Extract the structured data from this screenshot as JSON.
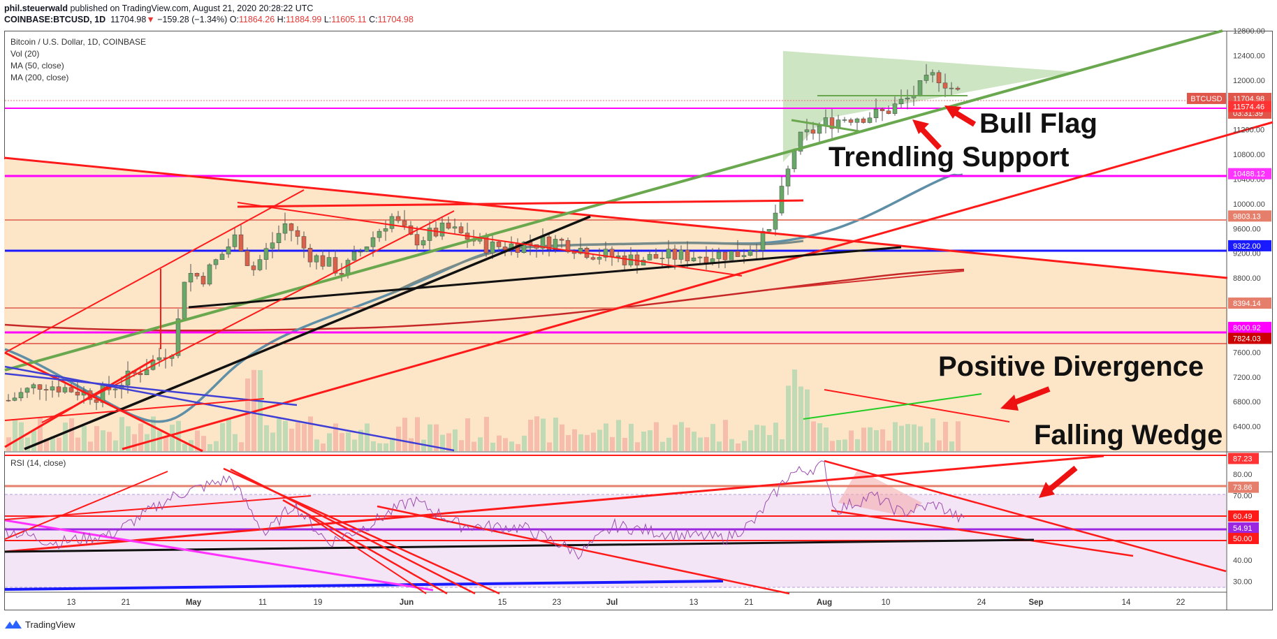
{
  "header": {
    "line1_author": "phil.steuerwald",
    "line1_rest": " published on TradingView.com, August 21, 2020 20:28:22 UTC",
    "symbol": "COINBASE:BTCUSD, 1D",
    "last": "11704.98",
    "arrow": "▼",
    "change": "−159.28 (−1.34%)",
    "o_label": "O:",
    "o": "11864.26",
    "h_label": "H:",
    "h": "11884.99",
    "l_label": "L:",
    "l": "11605.11",
    "c_label": "C:",
    "c": "11704.98"
  },
  "legend": {
    "title": "Bitcoin / U.S. Dollar, 1D, COINBASE",
    "vol": "Vol (20)",
    "ma50": "MA (50, close)",
    "ma200": "MA (200, close)",
    "rsi": "RSI (14, close)"
  },
  "footer": {
    "brand": "TradingView",
    "logo_icon": "tradingview-logo-icon"
  },
  "colors": {
    "up": "#6aa86a",
    "down": "#d9624a",
    "red_line": "#ff1a1a",
    "green_line": "#6aa84f",
    "magenta": "#ff00ff",
    "blue": "#0000ff",
    "ma50": "#607d8b",
    "ma200": "#d32f2f",
    "flag": "#bddcb0",
    "wedge_fill": "#fde6c8",
    "rsi_fill": "#f3e5f5"
  },
  "chart_data": [
    {
      "type": "candlestick",
      "title": "Bitcoin / U.S. Dollar, 1D, COINBASE",
      "x_ticks": [
        "13",
        "21",
        "May",
        "11",
        "19",
        "Jun",
        "15",
        "23",
        "Jul",
        "13",
        "21",
        "Aug",
        "10",
        "24",
        "Sep",
        "14",
        "22"
      ],
      "ylim": [
        6000,
        12800
      ],
      "y_ticks": [
        6400,
        6800,
        7200,
        7600,
        8000,
        8400,
        8800,
        9200,
        9600,
        10000,
        10400,
        10800,
        11200,
        11600,
        12000,
        12400,
        12800
      ],
      "price_labels": [
        {
          "text": "BTCUSD",
          "value": "11704.98",
          "level": 11704.98,
          "color": "#e0564b"
        },
        {
          "text": "03:31:39",
          "value": "",
          "level": 11560,
          "color": "#e0564b"
        },
        {
          "text": "",
          "value": "11574.46",
          "level": 11574.46,
          "color": "#ff3333"
        },
        {
          "text": "",
          "value": "10488.12",
          "level": 10488.12,
          "color": "#ff33ff"
        },
        {
          "text": "",
          "value": "9803.13",
          "level": 9803.13,
          "color": "#e57f6b"
        },
        {
          "text": "",
          "value": "9322.00",
          "level": 9322.0,
          "color": "#1a1aff"
        },
        {
          "text": "",
          "value": "8394.14",
          "level": 8394.14,
          "color": "#e57f6b"
        },
        {
          "text": "",
          "value": "8000.92",
          "level": 8000.92,
          "color": "#ff00ff"
        },
        {
          "text": "",
          "value": "7824.03",
          "level": 7824.03,
          "color": "#cc0000"
        }
      ],
      "annotations": [
        "Bull Flag",
        "Trendling Support",
        "Positive Divergence",
        "Falling Wedge"
      ]
    },
    {
      "type": "line",
      "title": "RSI (14, close)",
      "ylim": [
        25,
        90
      ],
      "y_ticks": [
        30,
        40,
        50,
        60,
        70,
        80
      ],
      "level_labels": [
        {
          "value": "87.23",
          "level": 87.23,
          "color": "#ff3333"
        },
        {
          "value": "73.86",
          "level": 73.86,
          "color": "#e57f6b"
        },
        {
          "value": "60.49",
          "level": 60.49,
          "color": "#ff1a1a"
        },
        {
          "value": "54.91",
          "level": 54.91,
          "color": "#9c27e0"
        },
        {
          "value": "50.00",
          "level": 50.0,
          "color": "#ff1a1a"
        }
      ]
    }
  ]
}
